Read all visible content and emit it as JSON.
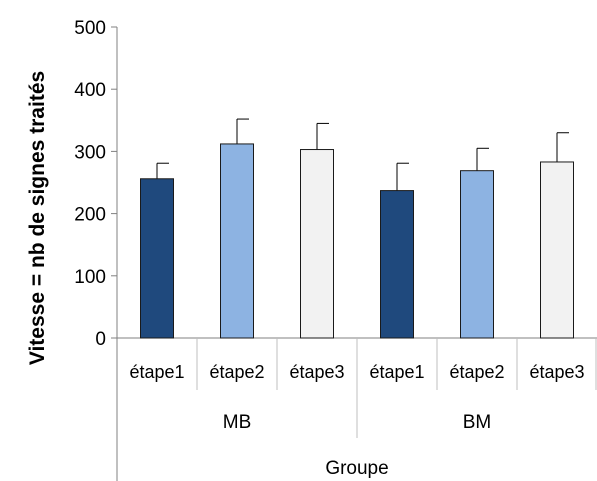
{
  "chart_data": {
    "type": "bar",
    "title": "",
    "ylabel": "Vitesse = nb de signes traités",
    "xlabel": "Groupe",
    "ylim": [
      0,
      500
    ],
    "yticks": [
      0,
      100,
      200,
      300,
      400,
      500
    ],
    "groups": [
      {
        "name": "MB",
        "categories": [
          "étape1",
          "étape2",
          "étape3"
        ],
        "values": [
          256,
          312,
          303
        ],
        "errors": [
          25,
          40,
          42
        ]
      },
      {
        "name": "BM",
        "categories": [
          "étape1",
          "étape2",
          "étape3"
        ],
        "values": [
          237,
          269,
          283
        ],
        "errors": [
          44,
          36,
          47
        ]
      }
    ],
    "colors": [
      "#1f497d",
      "#8db3e2",
      "#f2f2f2"
    ],
    "grid": false,
    "legend": "none"
  }
}
